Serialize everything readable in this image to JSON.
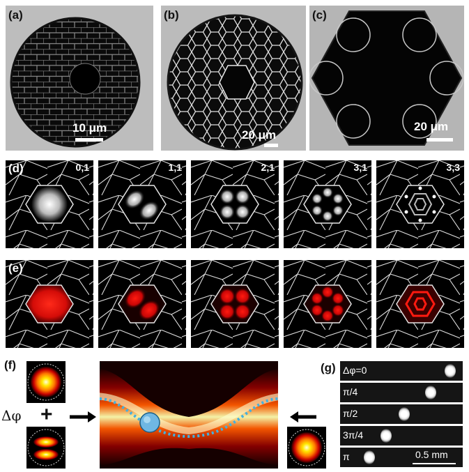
{
  "panels": {
    "a": {
      "label": "(a)",
      "scale_text": "10 μm"
    },
    "b": {
      "label": "(b)",
      "scale_text": "20 μm"
    },
    "c": {
      "label": "(c)",
      "scale_text": "20 μm"
    },
    "d": {
      "label": "(d)",
      "modes": [
        "0,1",
        "1,1",
        "2,1",
        "3,1",
        "3,3"
      ]
    },
    "e": {
      "label": "(e)"
    },
    "f": {
      "label": "(f)",
      "phase_symbol": "Δφ",
      "plus": "+"
    },
    "g": {
      "label": "(g)",
      "rows": [
        "Δφ=0",
        "π/4",
        "π/2",
        "3π/4",
        "π"
      ],
      "scale_text": "0.5 mm"
    }
  },
  "colors": {
    "sem_bg": "#b9b9b9",
    "dark": "#050505",
    "heat_red": "#cc0000",
    "bead": "#6fb7e3"
  }
}
